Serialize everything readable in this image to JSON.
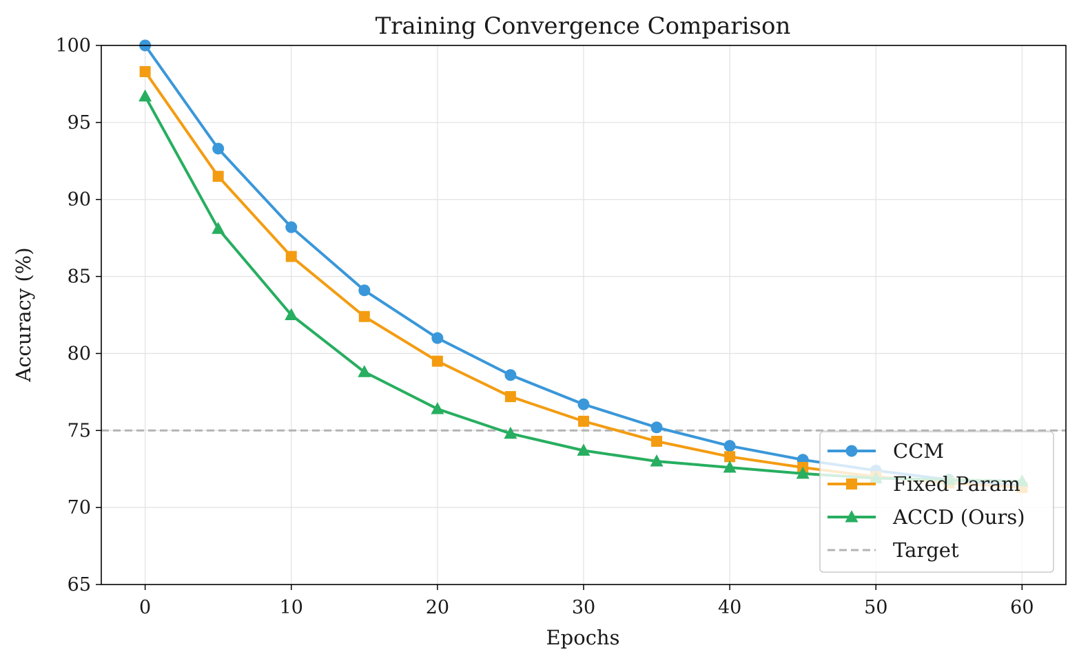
{
  "chart_data": {
    "type": "line",
    "title": "Training Convergence Comparison",
    "xlabel": "Epochs",
    "ylabel": "Accuracy (%)",
    "xlim": [
      -3,
      63
    ],
    "ylim": [
      65,
      100
    ],
    "xticks": [
      0,
      10,
      20,
      30,
      40,
      50,
      60
    ],
    "yticks": [
      65,
      70,
      75,
      80,
      85,
      90,
      95,
      100
    ],
    "grid": true,
    "legend_position": "lower-right",
    "x": [
      0,
      5,
      10,
      15,
      20,
      25,
      30,
      35,
      40,
      45,
      50,
      55,
      60
    ],
    "series": [
      {
        "name": "CCM",
        "color": "#3a97d9",
        "marker": "circle",
        "values": [
          100.0,
          93.3,
          88.2,
          84.1,
          81.0,
          78.6,
          76.7,
          75.2,
          74.0,
          73.1,
          72.4,
          71.8,
          71.4
        ]
      },
      {
        "name": "Fixed Param",
        "color": "#f39c12",
        "marker": "square",
        "values": [
          98.3,
          91.5,
          86.3,
          82.4,
          79.5,
          77.2,
          75.6,
          74.3,
          73.3,
          72.6,
          72.0,
          71.6,
          71.3
        ]
      },
      {
        "name": "ACCD (Ours)",
        "color": "#27ae60",
        "marker": "triangle",
        "values": [
          96.7,
          88.1,
          82.5,
          78.8,
          76.4,
          74.8,
          73.7,
          73.0,
          72.6,
          72.2,
          71.9,
          71.8,
          71.7
        ]
      }
    ],
    "reference_lines": [
      {
        "name": "Target",
        "y": 75,
        "color": "#b3b3b3",
        "style": "dashed"
      }
    ]
  }
}
